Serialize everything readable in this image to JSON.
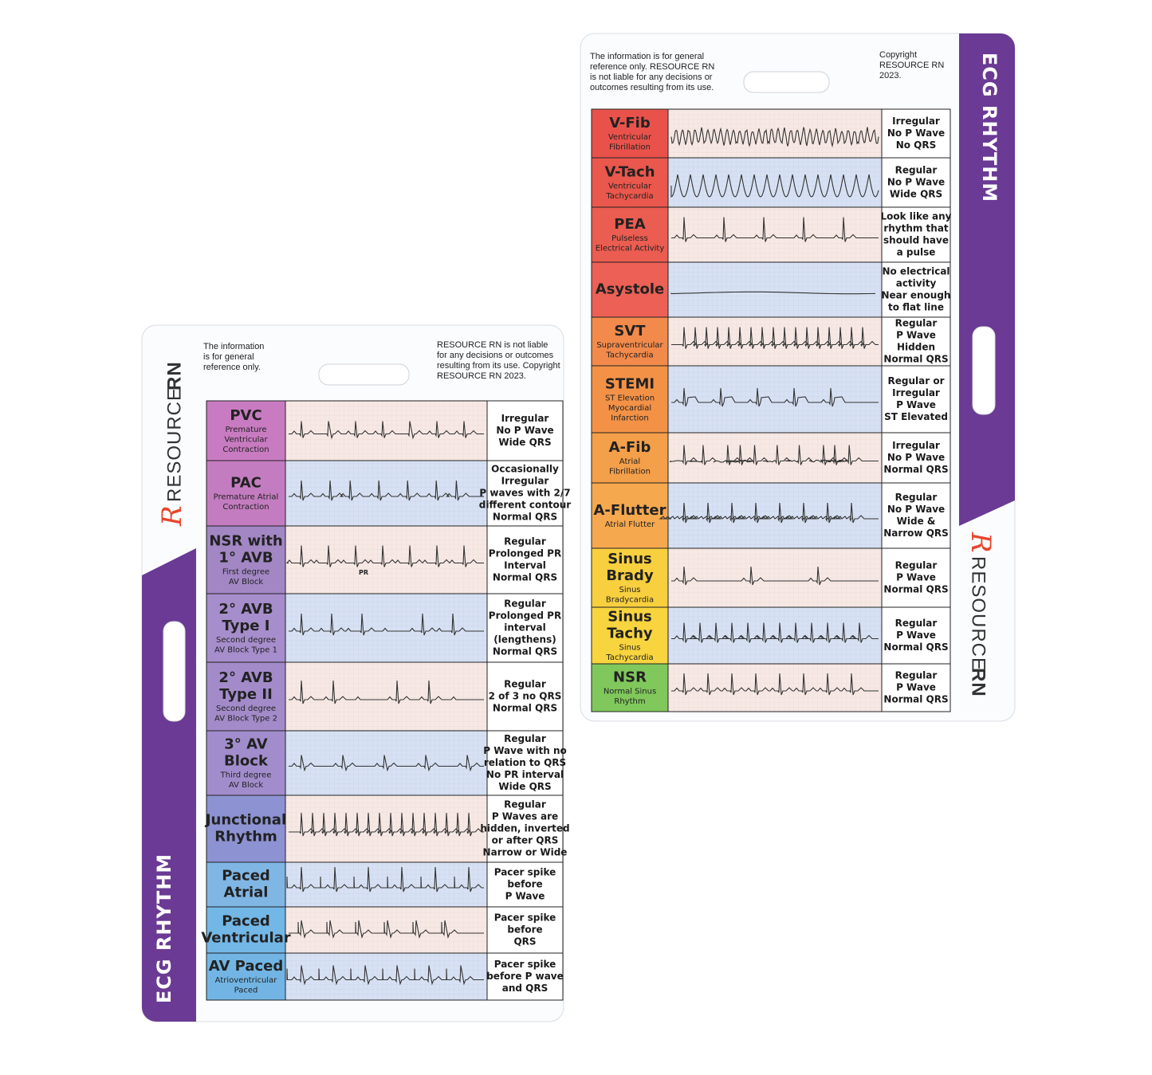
{
  "cards": [
    {
      "title": "ECG RHYTHM",
      "brand": {
        "mark": "R",
        "name": "RESOURCE",
        "bold": "RN"
      },
      "note_left": [
        "The information",
        "is for general",
        "reference only."
      ],
      "note_right": [
        "RESOURCE RN is not liable",
        "for any decisions or outcomes",
        "resulting from its use. Copyright",
        "RESOURCE RN 2023."
      ],
      "rows": [
        {
          "name": [
            "PVC"
          ],
          "subtitle": [
            "Premature",
            "Ventricular",
            "Contraction"
          ],
          "description": [
            "Irregular",
            "No P Wave",
            "Wide QRS"
          ],
          "color": "#c97bc2"
        },
        {
          "name": [
            "PAC"
          ],
          "subtitle": [
            "Premature Atrial",
            "Contraction"
          ],
          "description": [
            "Occasionally",
            "Irregular",
            "P waves with 2/7",
            "different contour",
            "Normal QRS"
          ],
          "color": "#c47cc0"
        },
        {
          "name": [
            "NSR with",
            "1° AVB"
          ],
          "subtitle": [
            "First degree",
            "AV Block"
          ],
          "description": [
            "Regular",
            "Prolonged PR",
            "Interval",
            "Normal QRS"
          ],
          "color": "#a287c4",
          "strip_label": "PR"
        },
        {
          "name": [
            "2° AVB",
            "Type I"
          ],
          "subtitle": [
            "Second degree",
            "AV Block Type 1"
          ],
          "description": [
            "Regular",
            "Prolonged PR",
            "interval",
            "(lengthens)",
            "Normal QRS"
          ],
          "color": "#a68dcb"
        },
        {
          "name": [
            "2° AVB",
            "Type II"
          ],
          "subtitle": [
            "Second degree",
            "AV Block Type 2"
          ],
          "description": [
            "Regular",
            "2 of 3 no QRS",
            "Normal QRS"
          ],
          "color": "#a38bca"
        },
        {
          "name": [
            "3° AV",
            "Block"
          ],
          "subtitle": [
            "Third degree",
            "AV Block"
          ],
          "description": [
            "Regular",
            "P Wave with no",
            "relation to QRS",
            "No PR interval",
            "Wide QRS"
          ],
          "color": "#a28dcc"
        },
        {
          "name": [
            "Junctional",
            "Rhythm"
          ],
          "description": [
            "Regular",
            "P Waves are",
            "hidden, inverted",
            "or after QRS",
            "Narrow or Wide"
          ],
          "color": "#8d92d2"
        },
        {
          "name": [
            "Paced",
            "Atrial"
          ],
          "description": [
            "Pacer spike",
            "before",
            "P Wave"
          ],
          "color": "#7fb6e4"
        },
        {
          "name": [
            "Paced",
            "Ventricular"
          ],
          "description": [
            "Pacer spike",
            "before",
            "QRS"
          ],
          "color": "#72b7e6"
        },
        {
          "name": [
            "AV Paced"
          ],
          "subtitle": [
            "Atrioventricular",
            "Paced"
          ],
          "description": [
            "Pacer spike",
            "before P wave",
            "and QRS"
          ],
          "color": "#72b5e4"
        }
      ]
    },
    {
      "title": "ECG RHYTHM",
      "brand": {
        "mark": "R",
        "name": "RESOURCE",
        "bold": "RN"
      },
      "note_left": [
        "The information is for general",
        "reference only. RESOURCE RN",
        "is not liable for any decisions or",
        "outcomes resulting from its use."
      ],
      "note_right": [
        "Copyright",
        "RESOURCE RN",
        "2023."
      ],
      "rows": [
        {
          "name": [
            "V-Fib"
          ],
          "subtitle": [
            "Ventricular",
            "Fibrillation"
          ],
          "description": [
            "Irregular",
            "No P Wave",
            "No QRS"
          ],
          "color": "#e9524b"
        },
        {
          "name": [
            "V-Tach"
          ],
          "subtitle": [
            "Ventricular",
            "Tachycardia"
          ],
          "description": [
            "Regular",
            "No P Wave",
            "Wide QRS"
          ],
          "color": "#ea574c"
        },
        {
          "name": [
            "PEA"
          ],
          "subtitle": [
            "Pulseless",
            "Electrical Activity"
          ],
          "description": [
            "Look like any",
            "rhythm that",
            "should have",
            "a pulse"
          ],
          "color": "#eb5c51"
        },
        {
          "name": [
            "Asystole"
          ],
          "description": [
            "No electrical",
            "activity",
            "Near enough",
            "to flat line"
          ],
          "color": "#ec6055"
        },
        {
          "name": [
            "SVT"
          ],
          "subtitle": [
            "Supraventricular",
            "Tachycardia"
          ],
          "description": [
            "Regular",
            "P Wave",
            "Hidden",
            "Normal QRS"
          ],
          "color": "#f28a4b"
        },
        {
          "name": [
            "STEMI"
          ],
          "subtitle": [
            "ST Elevation",
            "Myocardial",
            "Infarction"
          ],
          "description": [
            "Regular or",
            "Irregular",
            "P Wave",
            "ST Elevated"
          ],
          "color": "#f39247"
        },
        {
          "name": [
            "A-Fib"
          ],
          "subtitle": [
            "Atrial",
            "Fibrillation"
          ],
          "description": [
            "Irregular",
            "No P Wave",
            "Normal QRS"
          ],
          "color": "#f49f49"
        },
        {
          "name": [
            "A-Flutter"
          ],
          "subtitle": [
            "Atrial Flutter"
          ],
          "description": [
            "Regular",
            "No P Wave",
            "Wide &",
            "Narrow QRS"
          ],
          "color": "#f5a84d"
        },
        {
          "name": [
            "Sinus",
            "Brady"
          ],
          "subtitle": [
            "Sinus",
            "Bradycardia"
          ],
          "description": [
            "Regular",
            "P Wave",
            "Normal QRS"
          ],
          "color": "#f8cf3e"
        },
        {
          "name": [
            "Sinus",
            "Tachy"
          ],
          "subtitle": [
            "Sinus",
            "Tachycardia"
          ],
          "description": [
            "Regular",
            "P Wave",
            "Normal QRS"
          ],
          "color": "#f8d43e"
        },
        {
          "name": [
            "NSR"
          ],
          "subtitle": [
            "Normal Sinus",
            "Rhythm"
          ],
          "description": [
            "Regular",
            "P Wave",
            "Normal QRS"
          ],
          "color": "#80c85b"
        }
      ]
    }
  ]
}
